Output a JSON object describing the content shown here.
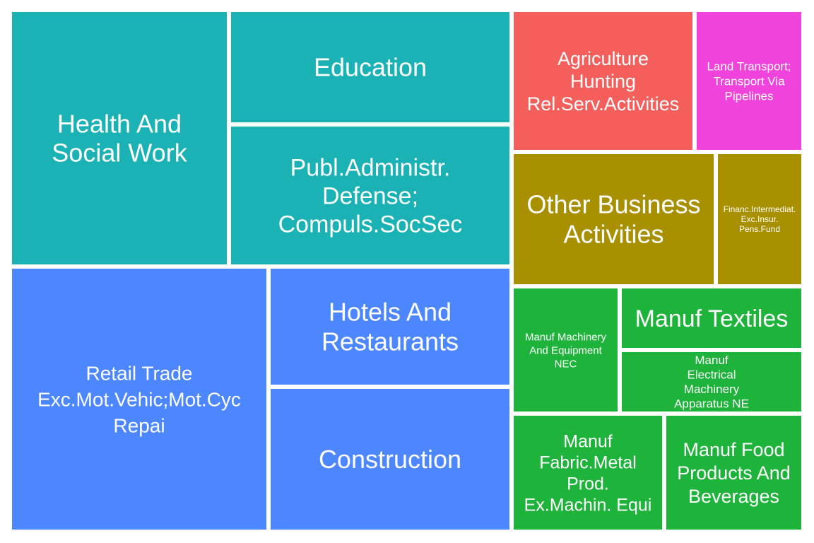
{
  "chart_data": {
    "type": "treemap",
    "groups": [
      {
        "name": "teal",
        "color": "#1ab2b5"
      },
      {
        "name": "blue",
        "color": "#4d87ff"
      },
      {
        "name": "red",
        "color": "#f45f5c"
      },
      {
        "name": "magenta",
        "color": "#f043dc"
      },
      {
        "name": "olive",
        "color": "#a89000"
      },
      {
        "name": "green",
        "color": "#1eb33a"
      }
    ],
    "tiles": [
      {
        "label": "Health And Social Work",
        "group": "teal"
      },
      {
        "label": "Education",
        "group": "teal"
      },
      {
        "label": "Publ.Administr. Defense; Compuls.SocSec",
        "group": "teal"
      },
      {
        "label": "Retail Trade Exc.Mot.Vehic;Mot.Cyc Repai",
        "group": "blue"
      },
      {
        "label": "Hotels And Restaurants",
        "group": "blue"
      },
      {
        "label": "Construction",
        "group": "blue"
      },
      {
        "label": "Agriculture Hunting Rel.Serv.Activities",
        "group": "red"
      },
      {
        "label": "Land Transport; Transport Via Pipelines",
        "group": "magenta"
      },
      {
        "label": "Other Business Activities",
        "group": "olive"
      },
      {
        "label": "Financ.Intermediat. Exc.Insur. Pens.Fund",
        "group": "olive"
      },
      {
        "label": "Manuf Machinery And Equipment NEC",
        "group": "green"
      },
      {
        "label": "Manuf Textiles",
        "group": "green"
      },
      {
        "label": "Manuf Electrical Machinery Apparatus NE",
        "group": "green"
      },
      {
        "label": "Manuf Fabric.Metal Prod. Ex.Machin. Equi",
        "group": "green"
      },
      {
        "label": "Manuf Food Products And Beverages",
        "group": "green"
      }
    ]
  }
}
